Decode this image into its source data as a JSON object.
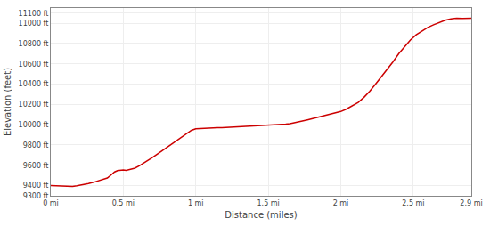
{
  "chart_data": {
    "type": "line",
    "xlabel": "Distance (miles)",
    "ylabel": "Elevation (feet)",
    "color": "#cc0000",
    "grid": true,
    "xlim": [
      0,
      2.9
    ],
    "ylim": [
      9300,
      11150
    ],
    "xticks": [
      {
        "value": 0,
        "label": "0 mi"
      },
      {
        "value": 0.5,
        "label": "0.5 mi"
      },
      {
        "value": 1.0,
        "label": "1 mi"
      },
      {
        "value": 1.5,
        "label": "1.5 mi"
      },
      {
        "value": 2.0,
        "label": "2 mi"
      },
      {
        "value": 2.5,
        "label": "2.5 mi"
      },
      {
        "value": 2.9,
        "label": "2.9 mi"
      }
    ],
    "yticks": [
      {
        "value": 9300,
        "label": "9300 ft"
      },
      {
        "value": 9400,
        "label": "9400 ft"
      },
      {
        "value": 9600,
        "label": "9600 ft"
      },
      {
        "value": 9800,
        "label": "9800 ft"
      },
      {
        "value": 10000,
        "label": "10000 ft"
      },
      {
        "value": 10200,
        "label": "10200 ft"
      },
      {
        "value": 10400,
        "label": "10400 ft"
      },
      {
        "value": 10600,
        "label": "10600 ft"
      },
      {
        "value": 10800,
        "label": "10800 ft"
      },
      {
        "value": 11000,
        "label": "11000 ft"
      },
      {
        "value": 11100,
        "label": "11100 ft"
      }
    ],
    "x": [
      0,
      0.04,
      0.08,
      0.12,
      0.15,
      0.18,
      0.22,
      0.26,
      0.3,
      0.33,
      0.36,
      0.39,
      0.42,
      0.44,
      0.46,
      0.48,
      0.5,
      0.52,
      0.55,
      0.58,
      0.61,
      0.64,
      0.67,
      0.7,
      0.74,
      0.78,
      0.82,
      0.86,
      0.9,
      0.94,
      0.97,
      1.0,
      1.03,
      1.06,
      1.09,
      1.12,
      1.15,
      1.18,
      1.21,
      1.25,
      1.28,
      1.32,
      1.35,
      1.38,
      1.42,
      1.45,
      1.48,
      1.52,
      1.55,
      1.58,
      1.62,
      1.65,
      1.68,
      1.71,
      1.74,
      1.77,
      1.8,
      1.83,
      1.87,
      1.9,
      1.94,
      1.97,
      2.0,
      2.04,
      2.08,
      2.12,
      2.16,
      2.2,
      2.24,
      2.28,
      2.32,
      2.36,
      2.4,
      2.44,
      2.48,
      2.52,
      2.56,
      2.6,
      2.64,
      2.68,
      2.72,
      2.76,
      2.8,
      2.84,
      2.88,
      2.9
    ],
    "values": [
      9400,
      9398,
      9392,
      9390,
      9392,
      9398,
      9408,
      9420,
      9435,
      9448,
      9460,
      9475,
      9510,
      9535,
      9548,
      9552,
      9555,
      9550,
      9558,
      9572,
      9595,
      9620,
      9645,
      9675,
      9715,
      9755,
      9795,
      9835,
      9875,
      9920,
      9945,
      9960,
      9963,
      9966,
      9968,
      9969,
      9970,
      9971,
      9973,
      9975,
      9977,
      9980,
      9982,
      9984,
      9987,
      9990,
      9992,
      9995,
      9998,
      10001,
      10005,
      10010,
      10018,
      10028,
      10038,
      10048,
      10058,
      10068,
      10080,
      10092,
      10105,
      10118,
      10130,
      10155,
      10185,
      10220,
      10270,
      10330,
      10400,
      10470,
      10545,
      10620,
      10700,
      10770,
      10835,
      10885,
      10925,
      10958,
      10985,
      11010,
      11030,
      11042,
      11050,
      11048,
      11045,
      11050
    ]
  }
}
